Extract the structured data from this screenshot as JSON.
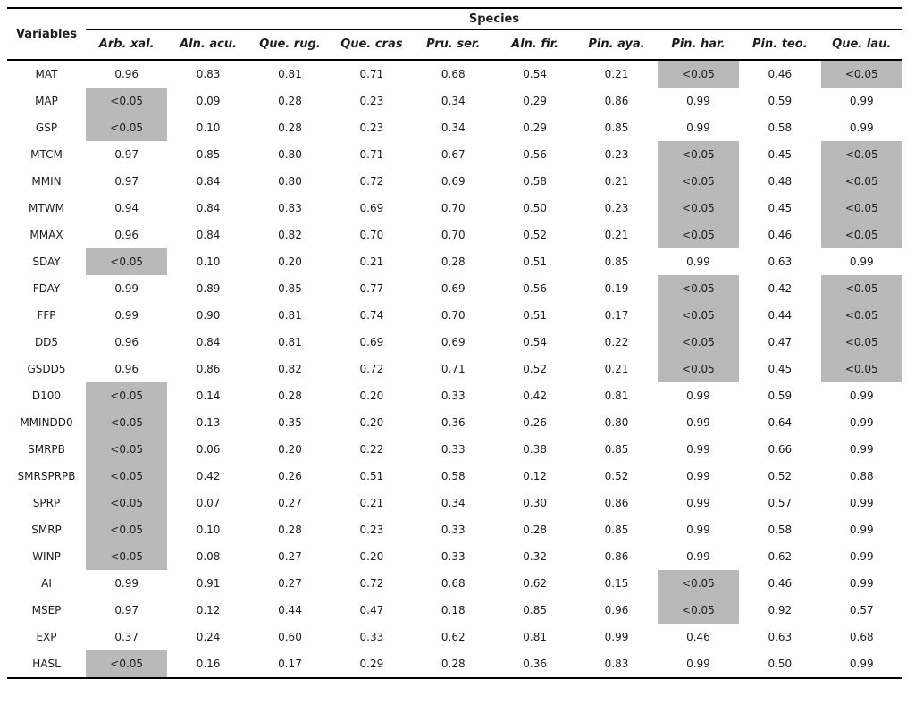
{
  "table": {
    "variables_header": "Variables",
    "species_header": "Species",
    "highlight_value": "<0.05",
    "highlight_color": "#b9b9b9",
    "columns": [
      "Arb. xal.",
      "Aln. acu.",
      "Que. rug.",
      "Que. cras",
      "Pru. ser.",
      "Aln. fir.",
      "Pin. aya.",
      "Pin. har.",
      "Pin. teo.",
      "Que. lau."
    ],
    "rows": [
      {
        "variable": "MAT",
        "values": [
          "0.96",
          "0.83",
          "0.81",
          "0.71",
          "0.68",
          "0.54",
          "0.21",
          "<0.05",
          "0.46",
          "<0.05"
        ]
      },
      {
        "variable": "MAP",
        "values": [
          "<0.05",
          "0.09",
          "0.28",
          "0.23",
          "0.34",
          "0.29",
          "0.86",
          "0.99",
          "0.59",
          "0.99"
        ]
      },
      {
        "variable": "GSP",
        "values": [
          "<0.05",
          "0.10",
          "0.28",
          "0.23",
          "0.34",
          "0.29",
          "0.85",
          "0.99",
          "0.58",
          "0.99"
        ]
      },
      {
        "variable": "MTCM",
        "values": [
          "0.97",
          "0.85",
          "0.80",
          "0.71",
          "0.67",
          "0.56",
          "0.23",
          "<0.05",
          "0.45",
          "<0.05"
        ]
      },
      {
        "variable": "MMIN",
        "values": [
          "0.97",
          "0.84",
          "0.80",
          "0.72",
          "0.69",
          "0.58",
          "0.21",
          "<0.05",
          "0.48",
          "<0.05"
        ]
      },
      {
        "variable": "MTWM",
        "values": [
          "0.94",
          "0.84",
          "0.83",
          "0.69",
          "0.70",
          "0.50",
          "0.23",
          "<0.05",
          "0.45",
          "<0.05"
        ]
      },
      {
        "variable": "MMAX",
        "values": [
          "0.96",
          "0.84",
          "0.82",
          "0.70",
          "0.70",
          "0.52",
          "0.21",
          "<0.05",
          "0.46",
          "<0.05"
        ]
      },
      {
        "variable": "SDAY",
        "values": [
          "<0.05",
          "0.10",
          "0.20",
          "0.21",
          "0.28",
          "0.51",
          "0.85",
          "0.99",
          "0.63",
          "0.99"
        ]
      },
      {
        "variable": "FDAY",
        "values": [
          "0.99",
          "0.89",
          "0.85",
          "0.77",
          "0.69",
          "0.56",
          "0.19",
          "<0.05",
          "0.42",
          "<0.05"
        ]
      },
      {
        "variable": "FFP",
        "values": [
          "0.99",
          "0.90",
          "0.81",
          "0.74",
          "0.70",
          "0.51",
          "0.17",
          "<0.05",
          "0.44",
          "<0.05"
        ]
      },
      {
        "variable": "DD5",
        "values": [
          "0.96",
          "0.84",
          "0.81",
          "0.69",
          "0.69",
          "0.54",
          "0.22",
          "<0.05",
          "0.47",
          "<0.05"
        ]
      },
      {
        "variable": "GSDD5",
        "values": [
          "0.96",
          "0.86",
          "0.82",
          "0.72",
          "0.71",
          "0.52",
          "0.21",
          "<0.05",
          "0.45",
          "<0.05"
        ]
      },
      {
        "variable": "D100",
        "values": [
          "<0.05",
          "0.14",
          "0.28",
          "0.20",
          "0.33",
          "0.42",
          "0.81",
          "0.99",
          "0.59",
          "0.99"
        ]
      },
      {
        "variable": "MMINDD0",
        "values": [
          "<0.05",
          "0.13",
          "0.35",
          "0.20",
          "0.36",
          "0.26",
          "0.80",
          "0.99",
          "0.64",
          "0.99"
        ]
      },
      {
        "variable": "SMRPB",
        "values": [
          "<0.05",
          "0.06",
          "0.20",
          "0.22",
          "0.33",
          "0.38",
          "0.85",
          "0.99",
          "0.66",
          "0.99"
        ]
      },
      {
        "variable": "SMRSPRPB",
        "values": [
          "<0.05",
          "0.42",
          "0.26",
          "0.51",
          "0.58",
          "0.12",
          "0.52",
          "0.99",
          "0.52",
          "0.88"
        ]
      },
      {
        "variable": "SPRP",
        "values": [
          "<0.05",
          "0.07",
          "0.27",
          "0.21",
          "0.34",
          "0.30",
          "0.86",
          "0.99",
          "0.57",
          "0.99"
        ]
      },
      {
        "variable": "SMRP",
        "values": [
          "<0.05",
          "0.10",
          "0.28",
          "0.23",
          "0.33",
          "0.28",
          "0.85",
          "0.99",
          "0.58",
          "0.99"
        ]
      },
      {
        "variable": "WINP",
        "values": [
          "<0.05",
          "0.08",
          "0.27",
          "0.20",
          "0.33",
          "0.32",
          "0.86",
          "0.99",
          "0.62",
          "0.99"
        ]
      },
      {
        "variable": "AI",
        "values": [
          "0.99",
          "0.91",
          "0.27",
          "0.72",
          "0.68",
          "0.62",
          "0.15",
          "<0.05",
          "0.46",
          "0.99"
        ]
      },
      {
        "variable": "MSEP",
        "values": [
          "0.97",
          "0.12",
          "0.44",
          "0.47",
          "0.18",
          "0.85",
          "0.96",
          "<0.05",
          "0.92",
          "0.57"
        ]
      },
      {
        "variable": "EXP",
        "values": [
          "0.37",
          "0.24",
          "0.60",
          "0.33",
          "0.62",
          "0.81",
          "0.99",
          "0.46",
          "0.63",
          "0.68"
        ]
      },
      {
        "variable": "HASL",
        "values": [
          "<0.05",
          "0.16",
          "0.17",
          "0.29",
          "0.28",
          "0.36",
          "0.83",
          "0.99",
          "0.50",
          "0.99"
        ]
      }
    ]
  }
}
